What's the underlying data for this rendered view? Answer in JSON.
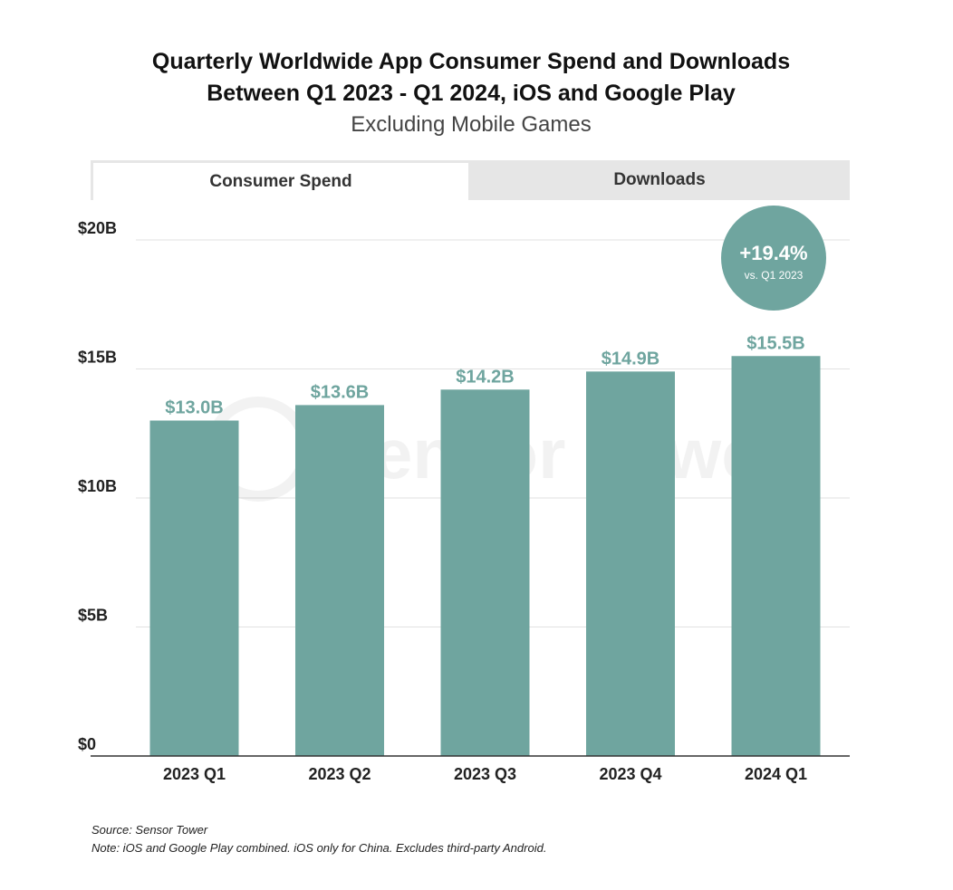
{
  "header": {
    "title_line1": "Quarterly Worldwide App Consumer Spend and Downloads",
    "title_line2": "Between Q1 2023 - Q1 2024, iOS and Google Play",
    "subtitle": "Excluding Mobile Games"
  },
  "tabs": [
    {
      "label": "Consumer Spend",
      "active": true
    },
    {
      "label": "Downloads",
      "active": false
    }
  ],
  "callout": {
    "value": "+19.4%",
    "caption": "vs. Q1 2023",
    "color": "#6fa59f"
  },
  "watermark": "Sensor Tower",
  "footer": {
    "source": "Source: Sensor Tower",
    "note": "Note: iOS and Google Play combined. iOS only for China. Excludes third-party Android."
  },
  "chart_data": {
    "type": "bar",
    "categories": [
      "2023 Q1",
      "2023 Q2",
      "2023 Q3",
      "2023 Q4",
      "2024 Q1"
    ],
    "values": [
      13.0,
      13.6,
      14.2,
      14.9,
      15.5
    ],
    "data_labels": [
      "$13.0B",
      "$13.6B",
      "$14.2B",
      "$14.9B",
      "$15.5B"
    ],
    "ylim": [
      0,
      20
    ],
    "yticks": [
      0,
      5,
      10,
      15,
      20
    ],
    "ytick_labels": [
      "$0",
      "$5B",
      "$10B",
      "$15B",
      "$20B"
    ],
    "grid": true,
    "bar_color": "#6fa59f",
    "label_color": "#6fa59f"
  }
}
